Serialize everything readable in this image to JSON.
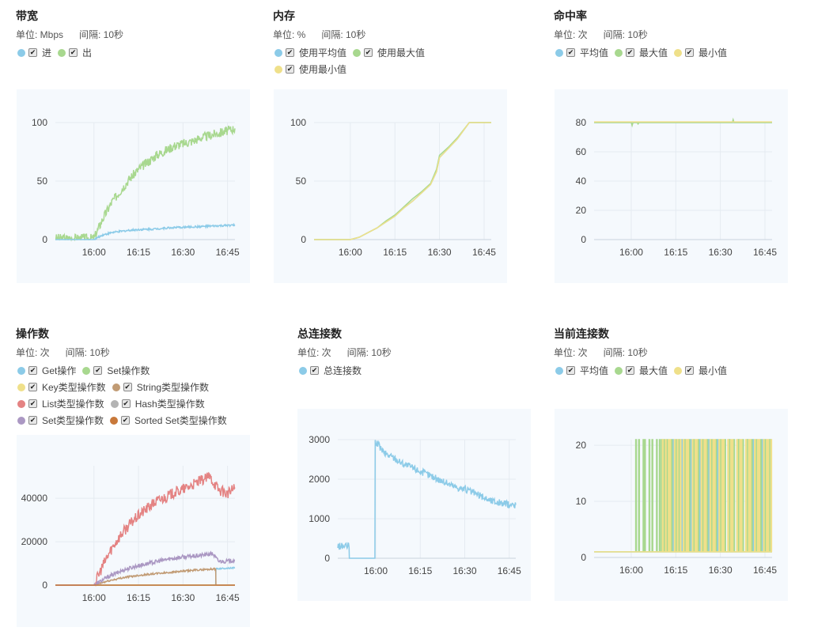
{
  "colors": {
    "blue": "#8ccbe8",
    "green": "#a8d88f",
    "yellow": "#efe08a",
    "brown": "#c19b74",
    "red": "#e48383",
    "gray": "#b3b3b3",
    "purple": "#ab98c3",
    "orange": "#c8783a",
    "grid": "#e5ebf1",
    "axis": "#c9d3dd"
  },
  "panels": [
    {
      "title": "带宽",
      "unit": "单位: Mbps",
      "interval": "间隔: 10秒",
      "legend": [
        [
          {
            "label": "进",
            "color": "blue"
          },
          {
            "label": "出",
            "color": "green"
          }
        ]
      ]
    },
    {
      "title": "内存",
      "unit": "单位: %",
      "interval": "间隔: 10秒",
      "legend": [
        [
          {
            "label": "使用平均值",
            "color": "blue"
          },
          {
            "label": "使用最大值",
            "color": "green"
          }
        ],
        [
          {
            "label": "使用最小值",
            "color": "yellow"
          }
        ]
      ]
    },
    {
      "title": "命中率",
      "unit": "单位: 次",
      "interval": "间隔: 10秒",
      "legend": [
        [
          {
            "label": "平均值",
            "color": "blue"
          },
          {
            "label": "最大值",
            "color": "green"
          },
          {
            "label": "最小值",
            "color": "yellow"
          }
        ]
      ]
    },
    {
      "title": "操作数",
      "unit": "单位: 次",
      "interval": "间隔: 10秒",
      "legend": [
        [
          {
            "label": "Get操作",
            "color": "blue"
          },
          {
            "label": "Set操作数",
            "color": "green"
          }
        ],
        [
          {
            "label": "Key类型操作数",
            "color": "yellow"
          },
          {
            "label": "String类型操作数",
            "color": "brown"
          }
        ],
        [
          {
            "label": "List类型操作数",
            "color": "red"
          },
          {
            "label": "Hash类型操作数",
            "color": "gray"
          }
        ],
        [
          {
            "label": "Set类型操作数",
            "color": "purple"
          },
          {
            "label": "Sorted Set类型操作数",
            "color": "orange"
          }
        ]
      ]
    },
    {
      "title": "总连接数",
      "unit": "单位: 次",
      "interval": "间隔: 10秒",
      "legend": [
        [
          {
            "label": "总连接数",
            "color": "blue"
          }
        ]
      ]
    },
    {
      "title": "当前连接数",
      "unit": "单位: 次",
      "interval": "间隔: 10秒",
      "legend": [
        [
          {
            "label": "平均值",
            "color": "blue"
          },
          {
            "label": "最大值",
            "color": "green"
          },
          {
            "label": "最小值",
            "color": "yellow"
          }
        ]
      ]
    }
  ],
  "chart_data": [
    {
      "type": "line",
      "title": "带宽",
      "x_unit": "minutes from 16:00",
      "xlim": [
        -13,
        47.5
      ],
      "xticks": [
        0,
        15,
        30,
        45
      ],
      "xtick_labels": [
        "16:00",
        "16:15",
        "16:30",
        "16:45"
      ],
      "ylim": [
        0,
        100
      ],
      "yticks": [
        0,
        50,
        100
      ],
      "series": [
        {
          "name": "出",
          "color": "green",
          "noise": 4,
          "x": [
            -13,
            0,
            3,
            6,
            9,
            12,
            15,
            18,
            21,
            24,
            27,
            30,
            33,
            36,
            39,
            42,
            45,
            47.5
          ],
          "y": [
            1,
            1,
            18,
            32,
            42,
            52,
            60,
            66,
            72,
            76,
            80,
            82,
            84,
            87,
            89,
            91,
            93,
            95
          ]
        },
        {
          "name": "进",
          "color": "blue",
          "noise": 0.8,
          "x": [
            -13,
            0,
            3,
            6,
            9,
            12,
            15,
            20,
            25,
            30,
            35,
            40,
            45,
            47.5
          ],
          "y": [
            0,
            0,
            4,
            6,
            7,
            8,
            8.5,
            9,
            10,
            10.5,
            11,
            11.5,
            12,
            12.5
          ]
        }
      ]
    },
    {
      "type": "line",
      "title": "内存",
      "xlim": [
        -12.2,
        47.4
      ],
      "xticks": [
        0,
        15,
        30,
        45
      ],
      "xtick_labels": [
        "16:00",
        "16:15",
        "16:30",
        "16:45"
      ],
      "ylim": [
        0,
        100
      ],
      "yticks": [
        0,
        50,
        100
      ],
      "series": [
        {
          "name": "使用平均值",
          "color": "blue",
          "noise": 0,
          "x": [
            -12.2,
            0,
            3,
            6,
            9,
            12,
            15,
            18,
            21,
            24,
            27,
            29,
            30,
            33,
            36,
            40,
            47.4
          ],
          "y": [
            0,
            0,
            2,
            6,
            10,
            15,
            20,
            27,
            33,
            40,
            47,
            58,
            70,
            78,
            86,
            100,
            100
          ]
        },
        {
          "name": "使用最大值",
          "color": "green",
          "noise": 0,
          "x": [
            -12.2,
            0,
            3,
            6,
            9,
            12,
            15,
            18,
            21,
            24,
            27,
            29,
            30,
            33,
            36,
            40,
            47.4
          ],
          "y": [
            0,
            0,
            2,
            6,
            10,
            16,
            21,
            28,
            35,
            41,
            48,
            60,
            72,
            79,
            87,
            100,
            100
          ]
        },
        {
          "name": "使用最小值",
          "color": "yellow",
          "noise": 0,
          "x": [
            -12.2,
            0,
            3,
            6,
            9,
            12,
            15,
            18,
            21,
            24,
            27,
            29,
            30,
            33,
            36,
            40,
            47.4
          ],
          "y": [
            0,
            0,
            2,
            6,
            10,
            15,
            20,
            27,
            33,
            40,
            47,
            58,
            70,
            78,
            86,
            100,
            100
          ]
        }
      ]
    },
    {
      "type": "line",
      "title": "命中率",
      "xlim": [
        -12.5,
        47.4
      ],
      "xticks": [
        0,
        15,
        30,
        45
      ],
      "xtick_labels": [
        "16:00",
        "16:15",
        "16:30",
        "16:45"
      ],
      "ylim": [
        0,
        80
      ],
      "yticks": [
        0,
        20,
        40,
        60,
        80
      ],
      "series": [
        {
          "name": "平均值",
          "color": "blue",
          "noise": 0,
          "x": [
            -12.5,
            47.4
          ],
          "y": [
            80,
            80
          ]
        },
        {
          "name": "最大值",
          "color": "green",
          "noise": 0,
          "x": [
            -12.5,
            0,
            0.3,
            0.6,
            2,
            2.3,
            2.6,
            34,
            34.3,
            34.6,
            47.4
          ],
          "y": [
            80,
            80,
            78,
            80,
            80,
            79,
            80,
            80,
            82,
            80,
            80
          ]
        },
        {
          "name": "最小值",
          "color": "yellow",
          "noise": 0,
          "x": [
            -12.5,
            47.4
          ],
          "y": [
            80.5,
            80.5
          ]
        }
      ]
    },
    {
      "type": "line",
      "title": "操作数",
      "xlim": [
        -13,
        47.5
      ],
      "xticks": [
        0,
        15,
        30,
        45
      ],
      "xtick_labels": [
        "16:00",
        "16:15",
        "16:30",
        "16:45"
      ],
      "ylim": [
        0,
        55000
      ],
      "yticks": [
        0,
        20000,
        40000
      ],
      "series": [
        {
          "name": "Get操作",
          "color": "blue",
          "noise": 300,
          "x": [
            -13,
            0,
            41,
            41.1,
            47.5
          ],
          "y": [
            0,
            0,
            0,
            7500,
            8000
          ]
        },
        {
          "name": "Set操作数",
          "color": "green",
          "noise": 0,
          "x": [
            -13,
            47.5
          ],
          "y": [
            0,
            0
          ]
        },
        {
          "name": "Key类型操作数",
          "color": "yellow",
          "noise": 0,
          "x": [
            -13,
            47.5
          ],
          "y": [
            0,
            0
          ]
        },
        {
          "name": "String类型操作数",
          "color": "brown",
          "noise": 400,
          "x": [
            -13,
            0,
            5,
            10,
            15,
            20,
            25,
            30,
            35,
            41,
            41.1,
            47.5
          ],
          "y": [
            0,
            0,
            2000,
            3500,
            4500,
            5200,
            5800,
            6400,
            7000,
            7500,
            0,
            0
          ]
        },
        {
          "name": "List类型操作数",
          "color": "red",
          "noise": 2500,
          "x": [
            -13,
            0,
            3,
            6,
            9,
            12,
            15,
            18,
            21,
            24,
            27,
            30,
            33,
            36,
            39,
            42,
            45,
            47.5
          ],
          "y": [
            0,
            0,
            9000,
            17000,
            23000,
            28000,
            32000,
            35500,
            38500,
            40500,
            42500,
            44000,
            46000,
            48000,
            50000,
            44000,
            42000,
            45000
          ]
        },
        {
          "name": "Hash类型操作数",
          "color": "gray",
          "noise": 0,
          "x": [
            -13,
            47.5
          ],
          "y": [
            0,
            0
          ]
        },
        {
          "name": "Set类型操作数",
          "color": "purple",
          "noise": 900,
          "x": [
            -13,
            0,
            5,
            10,
            15,
            20,
            25,
            30,
            35,
            40,
            42,
            45,
            47.5
          ],
          "y": [
            0,
            0,
            4000,
            7000,
            9000,
            10500,
            12000,
            13000,
            13500,
            14500,
            11000,
            11000,
            11500
          ]
        },
        {
          "name": "Sorted Set类型操作数",
          "color": "orange",
          "noise": 0,
          "x": [
            -13,
            0,
            41,
            41.1,
            47.5
          ],
          "y": [
            0,
            0,
            0,
            0,
            0
          ]
        }
      ]
    },
    {
      "type": "line",
      "title": "总连接数",
      "xlim": [
        -12.8,
        47.2
      ],
      "xticks": [
        0,
        15,
        30,
        45
      ],
      "xtick_labels": [
        "16:00",
        "16:15",
        "16:30",
        "16:45"
      ],
      "ylim": [
        0,
        3000
      ],
      "yticks": [
        0,
        1000,
        2000,
        3000
      ],
      "series": [
        {
          "name": "总连接数",
          "color": "blue",
          "noise": 90,
          "x": [
            -12.8,
            -9,
            -8.9,
            -0.3,
            -0.2,
            0.5,
            3,
            6,
            9,
            12,
            15,
            18,
            21,
            24,
            27,
            30,
            33,
            36,
            39,
            42,
            45,
            47.2
          ],
          "y": [
            300,
            300,
            0,
            0,
            2950,
            2900,
            2650,
            2550,
            2400,
            2300,
            2200,
            2100,
            2000,
            1900,
            1800,
            1750,
            1650,
            1550,
            1450,
            1400,
            1350,
            1350
          ]
        }
      ]
    },
    {
      "type": "line",
      "title": "当前连接数",
      "xlim": [
        -12.5,
        47.4
      ],
      "xticks": [
        0,
        15,
        30,
        45
      ],
      "xtick_labels": [
        "16:00",
        "16:15",
        "16:30",
        "16:45"
      ],
      "ylim": [
        0,
        21
      ],
      "yticks": [
        0,
        10,
        20
      ],
      "series": [
        {
          "name": "平均值",
          "color": "blue",
          "base": 1,
          "peak": 21,
          "spikes": [
            14,
            17,
            20,
            23,
            26,
            29,
            33,
            36,
            39,
            41,
            44,
            46.8
          ]
        },
        {
          "name": "最大值",
          "color": "green",
          "base": 1,
          "peak": 21,
          "spikes": [
            1.5,
            2.5,
            4,
            4.5,
            6,
            7,
            8.5,
            9.5,
            10.2,
            11,
            12,
            13.5,
            15,
            16,
            18,
            19.5,
            21,
            22.5,
            24,
            25.5,
            27,
            28.5,
            30,
            31.5,
            33,
            34.5,
            36,
            37.5,
            39,
            40.5,
            42,
            43.5,
            45,
            46.5
          ]
        },
        {
          "name": "最小值",
          "color": "yellow",
          "base": 1,
          "peak": 21,
          "spikes": [
            10.5,
            11.5,
            12.5,
            13,
            14.5,
            15.5,
            16.5,
            17.5,
            18.5,
            19,
            20.5,
            21.5,
            22,
            23.5,
            24.5,
            25,
            26.5,
            27.5,
            28,
            29.5,
            30.5,
            31,
            32.5,
            33.5,
            34,
            35.5,
            36.5,
            37,
            38.5,
            39.5,
            40,
            41.5,
            42.5,
            43,
            44.5,
            45.5,
            46,
            47
          ]
        }
      ]
    }
  ]
}
